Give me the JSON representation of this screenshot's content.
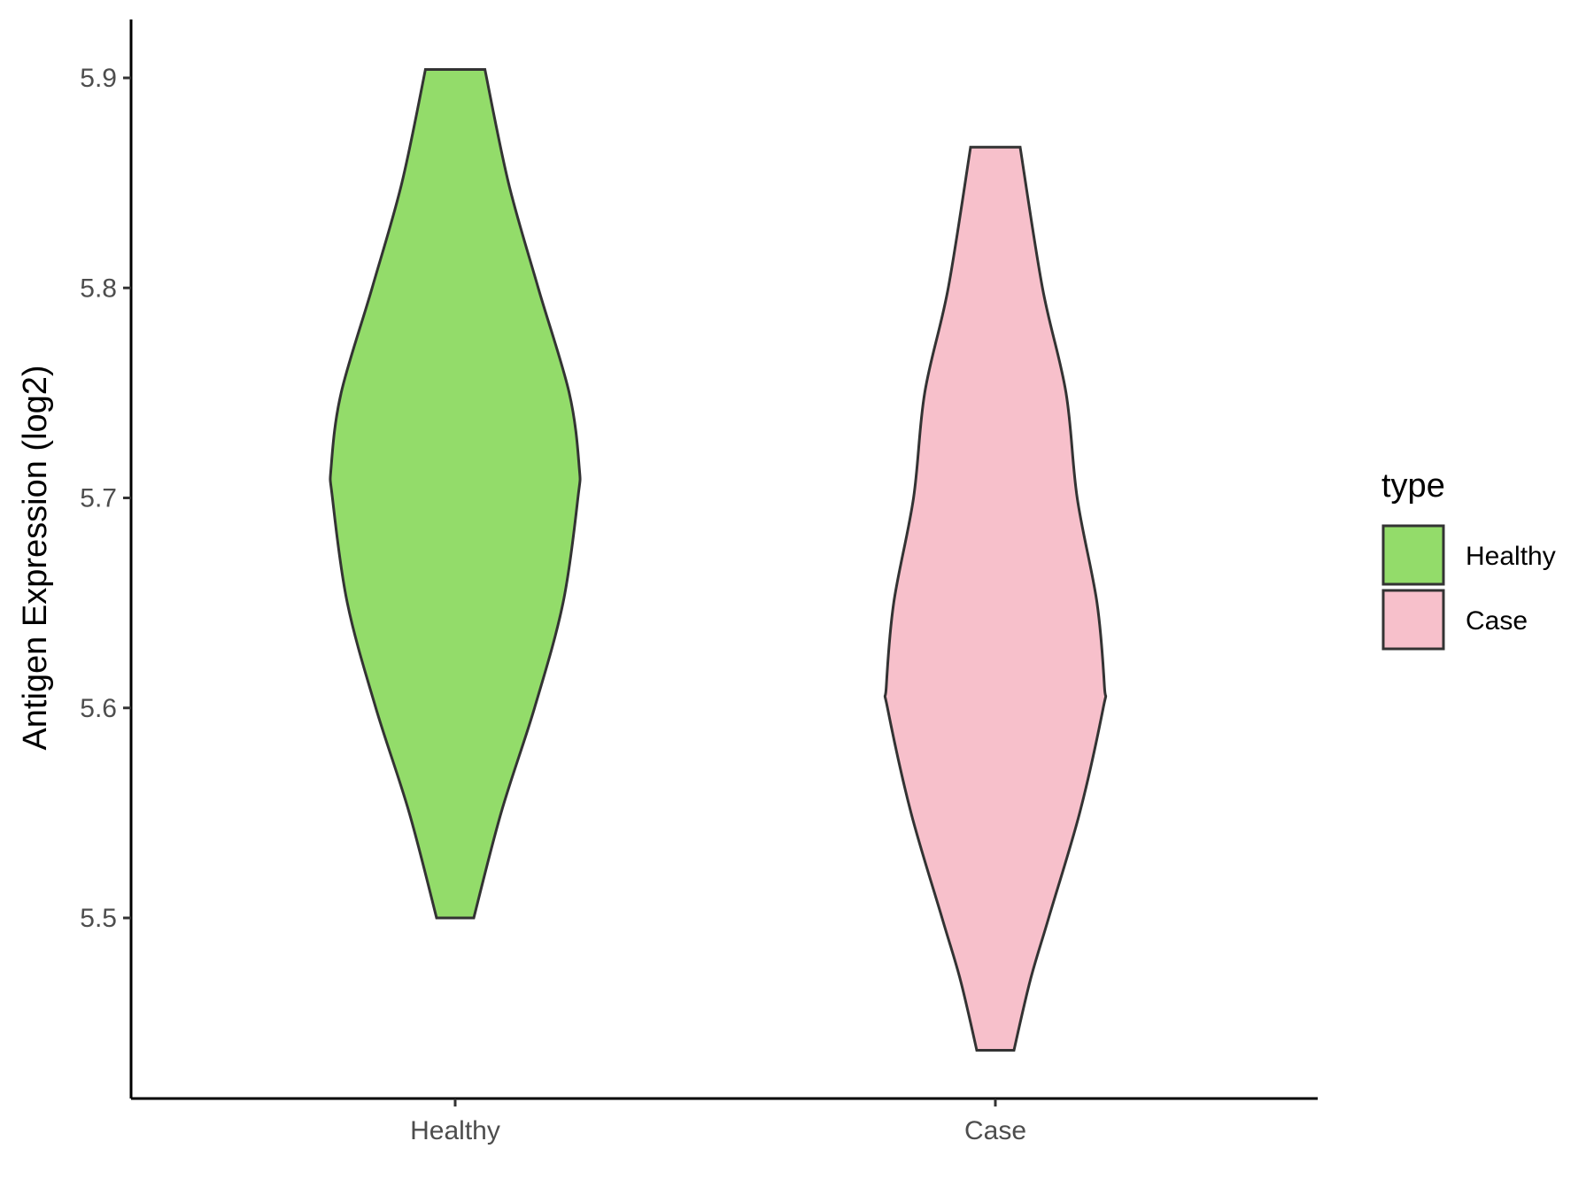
{
  "chart_data": {
    "type": "violin",
    "ylabel": "Antigen Expression (log2)",
    "xlabel": "",
    "categories": [
      "Healthy",
      "Case"
    ],
    "yticks": [
      "5.5",
      "5.6",
      "5.7",
      "5.8",
      "5.9"
    ],
    "ylim": [
      5.41,
      5.93
    ],
    "grid": false,
    "legend": {
      "title": "type",
      "position": "right",
      "entries": [
        "Healthy",
        "Case"
      ]
    },
    "series": [
      {
        "name": "Healthy",
        "color": "#93dc6a",
        "min": 5.5,
        "max": 5.904,
        "density_profile": [
          [
            5.5,
            0.075
          ],
          [
            5.55,
            0.185
          ],
          [
            5.6,
            0.32
          ],
          [
            5.65,
            0.435
          ],
          [
            5.7,
            0.495
          ],
          [
            5.715,
            0.5
          ],
          [
            5.75,
            0.46
          ],
          [
            5.8,
            0.335
          ],
          [
            5.85,
            0.215
          ],
          [
            5.904,
            0.12
          ]
        ]
      },
      {
        "name": "Case",
        "color": "#f7c0cb",
        "min": 5.437,
        "max": 5.867,
        "density_profile": [
          [
            5.437,
            0.075
          ],
          [
            5.47,
            0.14
          ],
          [
            5.5,
            0.215
          ],
          [
            5.55,
            0.34
          ],
          [
            5.6,
            0.435
          ],
          [
            5.61,
            0.44
          ],
          [
            5.65,
            0.41
          ],
          [
            5.7,
            0.33
          ],
          [
            5.75,
            0.285
          ],
          [
            5.8,
            0.19
          ],
          [
            5.867,
            0.1
          ]
        ]
      }
    ],
    "outline_color": "#333333"
  }
}
